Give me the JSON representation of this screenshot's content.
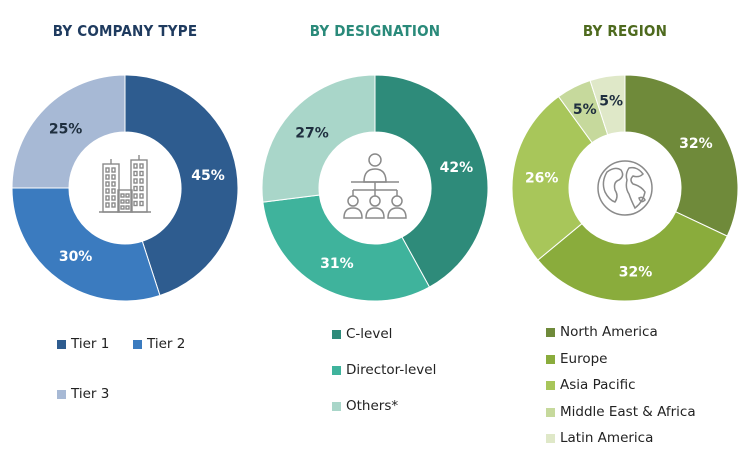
{
  "chart_data": [
    {
      "type": "pie",
      "title": "BY COMPANY TYPE",
      "title_color": "#1f3b5f",
      "categories": [
        "Tier 1",
        "Tier 2",
        "Tier 3"
      ],
      "values": [
        45,
        30,
        25
      ],
      "labels": [
        "45%",
        "30%",
        "25%"
      ],
      "colors": [
        "#2e5c8f",
        "#3b7bbf",
        "#a7b9d5"
      ],
      "icon": "buildings-icon",
      "donut": true
    },
    {
      "type": "pie",
      "title": "BY DESIGNATION",
      "title_color": "#2a8a7a",
      "categories": [
        "C-level",
        "Director-level",
        "Others*"
      ],
      "values": [
        42,
        31,
        27
      ],
      "labels": [
        "42%",
        "31%",
        "27%"
      ],
      "colors": [
        "#2e8b7a",
        "#3fb39c",
        "#a9d6c9"
      ],
      "icon": "org-chart-people-icon",
      "donut": true
    },
    {
      "type": "pie",
      "title": "BY REGION",
      "title_color": "#4e6a1e",
      "categories": [
        "North America",
        "Europe",
        "Asia Pacific",
        "Middle East & Africa",
        "Latin America"
      ],
      "values": [
        32,
        32,
        26,
        5,
        5
      ],
      "labels": [
        "32%",
        "32%",
        "26%",
        "5%",
        "5%"
      ],
      "colors": [
        "#6f8a3a",
        "#8aac3c",
        "#a8c65a",
        "#c6d99c",
        "#dfe8c8"
      ],
      "icon": "globe-icon",
      "donut": true
    }
  ]
}
